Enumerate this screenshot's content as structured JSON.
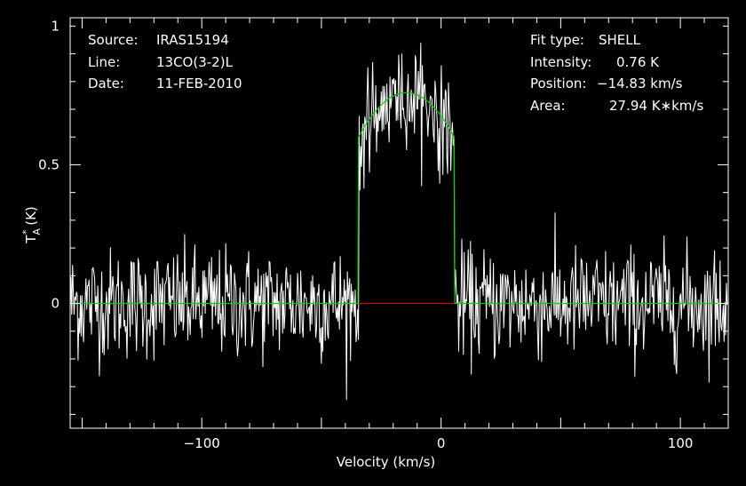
{
  "header_left": {
    "source_label": "Source:",
    "source_value": "IRAS15194",
    "line_label": "Line:",
    "line_value": "13CO(3-2)L",
    "date_label": "Date:",
    "date_value": "11-FEB-2010"
  },
  "header_right": {
    "fit_label": "Fit type:",
    "fit_value": "SHELL",
    "intensity_label": "Intensity:",
    "intensity_value": "0.76 K",
    "position_label": "Position:",
    "position_value": "−14.83 km/s",
    "area_label": "Area:",
    "area_value": "27.94 K∗km/s"
  },
  "chart_data": {
    "type": "line",
    "xlabel": "Velocity (km/s)",
    "ylabel_main": "T",
    "ylabel_sup": "*",
    "ylabel_sub": "A",
    "ylabel_unit": "(K)",
    "xlim": [
      -155,
      120
    ],
    "ylim": [
      -0.45,
      1.03
    ],
    "x_ticks": [
      {
        "value": -100,
        "label": "−100"
      },
      {
        "value": 0,
        "label": "0"
      },
      {
        "value": 100,
        "label": "100"
      }
    ],
    "y_ticks": [
      {
        "value": 0,
        "label": "0"
      },
      {
        "value": 0.5,
        "label": "0.5"
      },
      {
        "value": 1,
        "label": "1"
      }
    ],
    "grid": false,
    "colors": {
      "spectrum": "#ffffff",
      "fit": "#00cc00",
      "baseline": "#cc0000",
      "axes": "#ffffff",
      "background": "#000000"
    },
    "series": [
      {
        "role": "spectrum",
        "noise_rms": 0.1,
        "note_values": "observed antenna temperature per channel",
        "step_kms": 0.33,
        "profile": {
          "v_min": -35,
          "v_max": 5,
          "peak": 0.76,
          "center": -14.83
        }
      },
      {
        "role": "fit",
        "shape": "shell",
        "intensity": 0.76,
        "center": -14.83,
        "v_min": -34.5,
        "v_max": 5.5,
        "edge_value": 0.6
      },
      {
        "role": "baseline",
        "y": 0,
        "x_range": [
          -34.5,
          5.5
        ]
      }
    ]
  }
}
